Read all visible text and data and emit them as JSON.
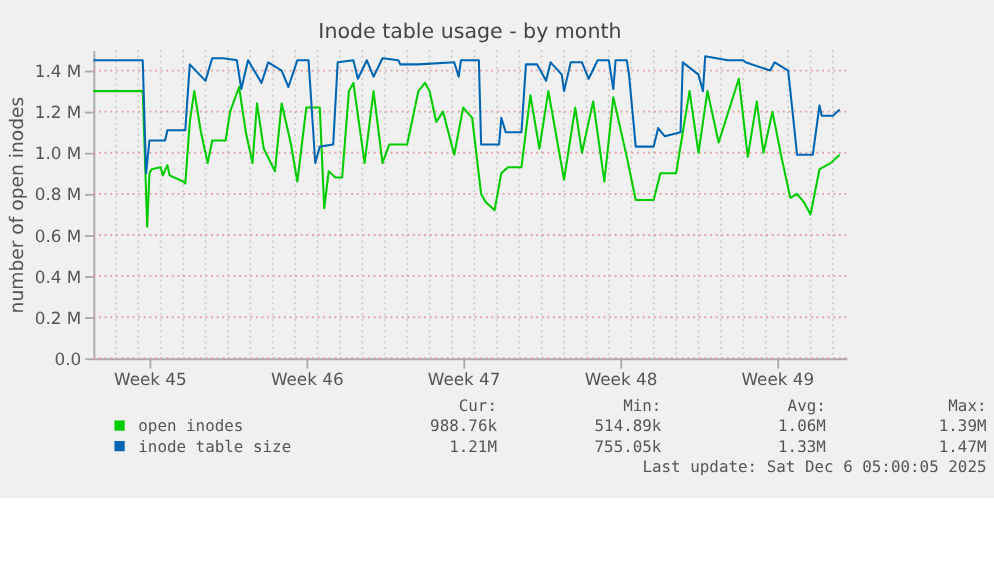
{
  "chart_data": {
    "type": "line",
    "title": "Inode table usage - by month",
    "ylabel": "number of open inodes",
    "xlim": [
      "2025-11-04T00:00",
      "2025-12-07T14:24"
    ],
    "xticks": [
      {
        "value": "2025-11-06T12:00",
        "label": "Week 45"
      },
      {
        "value": "2025-11-13T12:00",
        "label": "Week 46"
      },
      {
        "value": "2025-11-20T12:00",
        "label": "Week 47"
      },
      {
        "value": "2025-11-27T12:00",
        "label": "Week 48"
      },
      {
        "value": "2025-12-04T12:00",
        "label": "Week 49"
      }
    ],
    "ylim": [
      0,
      1500000
    ],
    "yticks": [
      {
        "value": 0,
        "label": "0.0"
      },
      {
        "value": 200000,
        "label": "0.2 M"
      },
      {
        "value": 400000,
        "label": "0.4 M"
      },
      {
        "value": 600000,
        "label": "0.6 M"
      },
      {
        "value": 800000,
        "label": "0.8 M"
      },
      {
        "value": 1000000,
        "label": "1.0 M"
      },
      {
        "value": 1200000,
        "label": "1.2 M"
      },
      {
        "value": 1400000,
        "label": "1.4 M"
      }
    ],
    "grid": true,
    "legend": "bottom",
    "line_style": "solid",
    "marker": "none",
    "series": [
      {
        "name": "open inodes",
        "color": "#00cc00",
        "x": [
          "2025-11-04T00:00",
          "2025-11-06T04:48",
          "2025-11-06T09:36",
          "2025-11-06T12:00",
          "2025-11-06T14:24",
          "2025-11-07T00:00",
          "2025-11-07T02:24",
          "2025-11-07T07:12",
          "2025-11-07T09:36",
          "2025-11-08T00:00",
          "2025-11-08T02:24",
          "2025-11-08T07:12",
          "2025-11-08T12:00",
          "2025-11-08T19:12",
          "2025-11-09T02:24",
          "2025-11-09T07:12",
          "2025-11-09T21:36",
          "2025-11-10T02:24",
          "2025-11-10T12:00",
          "2025-11-10T19:12",
          "2025-11-11T02:24",
          "2025-11-11T07:12",
          "2025-11-11T14:24",
          "2025-11-12T02:24",
          "2025-11-12T09:36",
          "2025-11-12T19:12",
          "2025-11-13T02:24",
          "2025-11-13T12:00",
          "2025-11-14T02:24",
          "2025-11-14T07:12",
          "2025-11-14T12:00",
          "2025-11-14T19:12",
          "2025-11-15T02:24",
          "2025-11-15T09:36",
          "2025-11-15T14:24",
          "2025-11-16T02:24",
          "2025-11-16T12:00",
          "2025-11-16T21:36",
          "2025-11-17T04:48",
          "2025-11-18T00:00",
          "2025-11-18T12:00",
          "2025-11-18T19:12",
          "2025-11-19T00:00",
          "2025-11-19T07:12",
          "2025-11-19T14:24",
          "2025-11-20T02:24",
          "2025-11-20T12:00",
          "2025-11-20T21:36",
          "2025-11-21T07:12",
          "2025-11-21T12:00",
          "2025-11-21T21:36",
          "2025-11-22T04:48",
          "2025-11-22T12:00",
          "2025-11-23T02:24",
          "2025-11-23T12:00",
          "2025-11-23T21:36",
          "2025-11-24T07:12",
          "2025-11-25T00:00",
          "2025-11-25T12:00",
          "2025-11-25T19:12",
          "2025-11-26T07:12",
          "2025-11-26T19:12",
          "2025-11-27T04:48",
          "2025-11-27T19:12",
          "2025-11-28T04:48",
          "2025-11-29T00:00",
          "2025-11-29T07:12",
          "2025-11-30T00:00",
          "2025-11-30T14:24",
          "2025-12-01T00:00",
          "2025-12-01T09:36",
          "2025-12-01T21:36",
          "2025-12-02T19:12",
          "2025-12-03T04:48",
          "2025-12-03T14:24",
          "2025-12-03T21:36",
          "2025-12-04T07:12",
          "2025-12-04T16:48",
          "2025-12-05T02:24",
          "2025-12-05T09:36",
          "2025-12-05T16:48",
          "2025-12-06T00:00",
          "2025-12-06T09:36",
          "2025-12-06T21:36",
          "2025-12-07T07:12"
        ],
        "values": [
          1300000,
          1300000,
          640000,
          900000,
          920000,
          930000,
          890000,
          940000,
          890000,
          860000,
          850000,
          1150000,
          1300000,
          1100000,
          950000,
          1060000,
          1060000,
          1200000,
          1320000,
          1100000,
          950000,
          1240000,
          1020000,
          910000,
          1240000,
          1050000,
          860000,
          1220000,
          1220000,
          730000,
          910000,
          880000,
          880000,
          1300000,
          1340000,
          950000,
          1300000,
          950000,
          1040000,
          1040000,
          1300000,
          1340000,
          1300000,
          1150000,
          1200000,
          990000,
          1220000,
          1170000,
          800000,
          760000,
          720000,
          900000,
          930000,
          930000,
          1280000,
          1020000,
          1300000,
          870000,
          1220000,
          1000000,
          1250000,
          860000,
          1270000,
          980000,
          770000,
          770000,
          900000,
          900000,
          1300000,
          1000000,
          1300000,
          1050000,
          1360000,
          980000,
          1250000,
          1000000,
          1200000,
          980000,
          780000,
          800000,
          760000,
          700000,
          920000,
          950000,
          990000
        ]
      },
      {
        "name": "inode table size",
        "color": "#0066b3",
        "x": [
          "2025-11-04T00:00",
          "2025-11-06T04:48",
          "2025-11-06T08:24",
          "2025-11-06T12:00",
          "2025-11-07T04:48",
          "2025-11-07T07:12",
          "2025-11-08T02:24",
          "2025-11-08T07:12",
          "2025-11-09T00:00",
          "2025-11-09T07:12",
          "2025-11-09T19:12",
          "2025-11-10T09:36",
          "2025-11-10T14:24",
          "2025-11-10T21:36",
          "2025-11-11T12:00",
          "2025-11-11T19:12",
          "2025-11-12T09:36",
          "2025-11-12T16:48",
          "2025-11-13T02:24",
          "2025-11-13T14:24",
          "2025-11-13T21:36",
          "2025-11-14T02:24",
          "2025-11-14T16:48",
          "2025-11-14T21:36",
          "2025-11-15T14:24",
          "2025-11-15T19:12",
          "2025-11-16T04:48",
          "2025-11-16T12:00",
          "2025-11-16T21:36",
          "2025-11-17T14:24",
          "2025-11-17T16:48",
          "2025-11-18T12:00",
          "2025-11-20T02:24",
          "2025-11-20T07:12",
          "2025-11-20T09:36",
          "2025-11-21T04:48",
          "2025-11-21T07:12",
          "2025-11-22T02:24",
          "2025-11-22T04:48",
          "2025-11-22T09:36",
          "2025-11-23T02:24",
          "2025-11-23T07:12",
          "2025-11-23T19:12",
          "2025-11-24T04:48",
          "2025-11-24T09:36",
          "2025-11-24T21:36",
          "2025-11-25T00:00",
          "2025-11-25T07:12",
          "2025-11-25T19:12",
          "2025-11-26T02:24",
          "2025-11-26T12:00",
          "2025-11-27T00:00",
          "2025-11-27T04:48",
          "2025-11-27T07:12",
          "2025-11-27T19:12",
          "2025-11-27T21:36",
          "2025-11-28T04:48",
          "2025-11-29T00:00",
          "2025-11-29T04:48",
          "2025-11-29T12:00",
          "2025-11-30T04:48",
          "2025-11-30T07:12",
          "2025-12-01T00:00",
          "2025-12-01T04:48",
          "2025-12-01T07:12",
          "2025-12-02T07:12",
          "2025-12-03T00:00",
          "2025-12-03T02:24",
          "2025-12-04T04:48",
          "2025-12-04T09:36",
          "2025-12-05T00:00",
          "2025-12-05T02:24",
          "2025-12-05T09:36",
          "2025-12-06T02:24",
          "2025-12-06T09:36",
          "2025-12-06T12:00",
          "2025-12-07T00:00",
          "2025-12-07T07:12"
        ],
        "values": [
          1450000,
          1450000,
          900000,
          1060000,
          1060000,
          1110000,
          1110000,
          1430000,
          1350000,
          1460000,
          1460000,
          1450000,
          1310000,
          1450000,
          1340000,
          1440000,
          1400000,
          1320000,
          1450000,
          1450000,
          950000,
          1030000,
          1040000,
          1440000,
          1450000,
          1360000,
          1450000,
          1370000,
          1460000,
          1450000,
          1430000,
          1430000,
          1440000,
          1370000,
          1450000,
          1450000,
          1040000,
          1040000,
          1170000,
          1100000,
          1100000,
          1430000,
          1430000,
          1350000,
          1440000,
          1380000,
          1300000,
          1440000,
          1440000,
          1360000,
          1450000,
          1450000,
          1310000,
          1450000,
          1450000,
          1380000,
          1030000,
          1030000,
          1120000,
          1080000,
          1100000,
          1440000,
          1380000,
          1300000,
          1470000,
          1450000,
          1450000,
          1440000,
          1400000,
          1440000,
          1400000,
          1300000,
          990000,
          990000,
          1230000,
          1180000,
          1180000,
          1210000
        ]
      }
    ],
    "annotations": [
      "Cur:",
      "Min:",
      "Avg:",
      "Max:",
      "988.76k",
      "514.89k",
      "1.06M",
      "1.39M",
      "1.21M",
      "755.05k",
      "1.33M",
      "1.47M",
      "Last update: Sat Dec  6 05:00:05 2025"
    ]
  }
}
